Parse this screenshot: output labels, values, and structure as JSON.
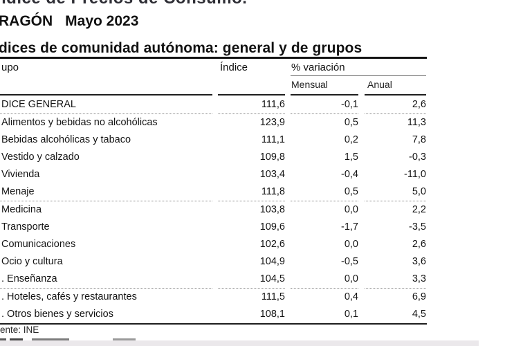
{
  "page": {
    "title_top_cut": "ndice de Precios de Consumo.",
    "region": "RAGÓN",
    "period": "Mayo 2023",
    "section_heading": "dices de comunidad autónoma: general y de grupos",
    "source": "ente: INE"
  },
  "table": {
    "columns": {
      "group": "upo",
      "index": "Índice",
      "variation": "% variación",
      "monthly": "Mensual",
      "annual": "Anual"
    },
    "rows": [
      {
        "label": "DICE GENERAL",
        "index": "111,6",
        "monthly": "-0,1",
        "annual": "2,6",
        "sep_after": true
      },
      {
        "label": "Alimentos y bebidas no alcohólicas",
        "index": "123,9",
        "monthly": "0,5",
        "annual": "11,3"
      },
      {
        "label": "Bebidas alcohólicas y tabaco",
        "index": "111,1",
        "monthly": "0,2",
        "annual": "7,8"
      },
      {
        "label": "Vestido y calzado",
        "index": "109,8",
        "monthly": "1,5",
        "annual": "-0,3"
      },
      {
        "label": "Vivienda",
        "index": "103,4",
        "monthly": "-0,4",
        "annual": "-11,0"
      },
      {
        "label": "Menaje",
        "index": "111,8",
        "monthly": "0,5",
        "annual": "5,0",
        "sep_after": true
      },
      {
        "label": "Medicina",
        "index": "103,8",
        "monthly": "0,0",
        "annual": "2,2"
      },
      {
        "label": "Transporte",
        "index": "109,6",
        "monthly": "-1,7",
        "annual": "-3,5"
      },
      {
        "label": "Comunicaciones",
        "index": "102,6",
        "monthly": "0,0",
        "annual": "2,6"
      },
      {
        "label": "Ocio y cultura",
        "index": "104,9",
        "monthly": "-0,5",
        "annual": "3,6"
      },
      {
        "label": ". Enseñanza",
        "index": "104,5",
        "monthly": "0,0",
        "annual": "3,3",
        "sep_after": true
      },
      {
        "label": ". Hoteles, cafés y restaurantes",
        "index": "111,5",
        "monthly": "0,4",
        "annual": "6,9"
      },
      {
        "label": ". Otros bienes y servicios",
        "index": "108,1",
        "monthly": "0,1",
        "annual": "4,5"
      }
    ]
  },
  "colors": {
    "text": "#1a1a1a",
    "heavy_rule": "#141414",
    "dotted_rule": "#8a8a8a",
    "bottom_bar": "#ebe8eb"
  }
}
